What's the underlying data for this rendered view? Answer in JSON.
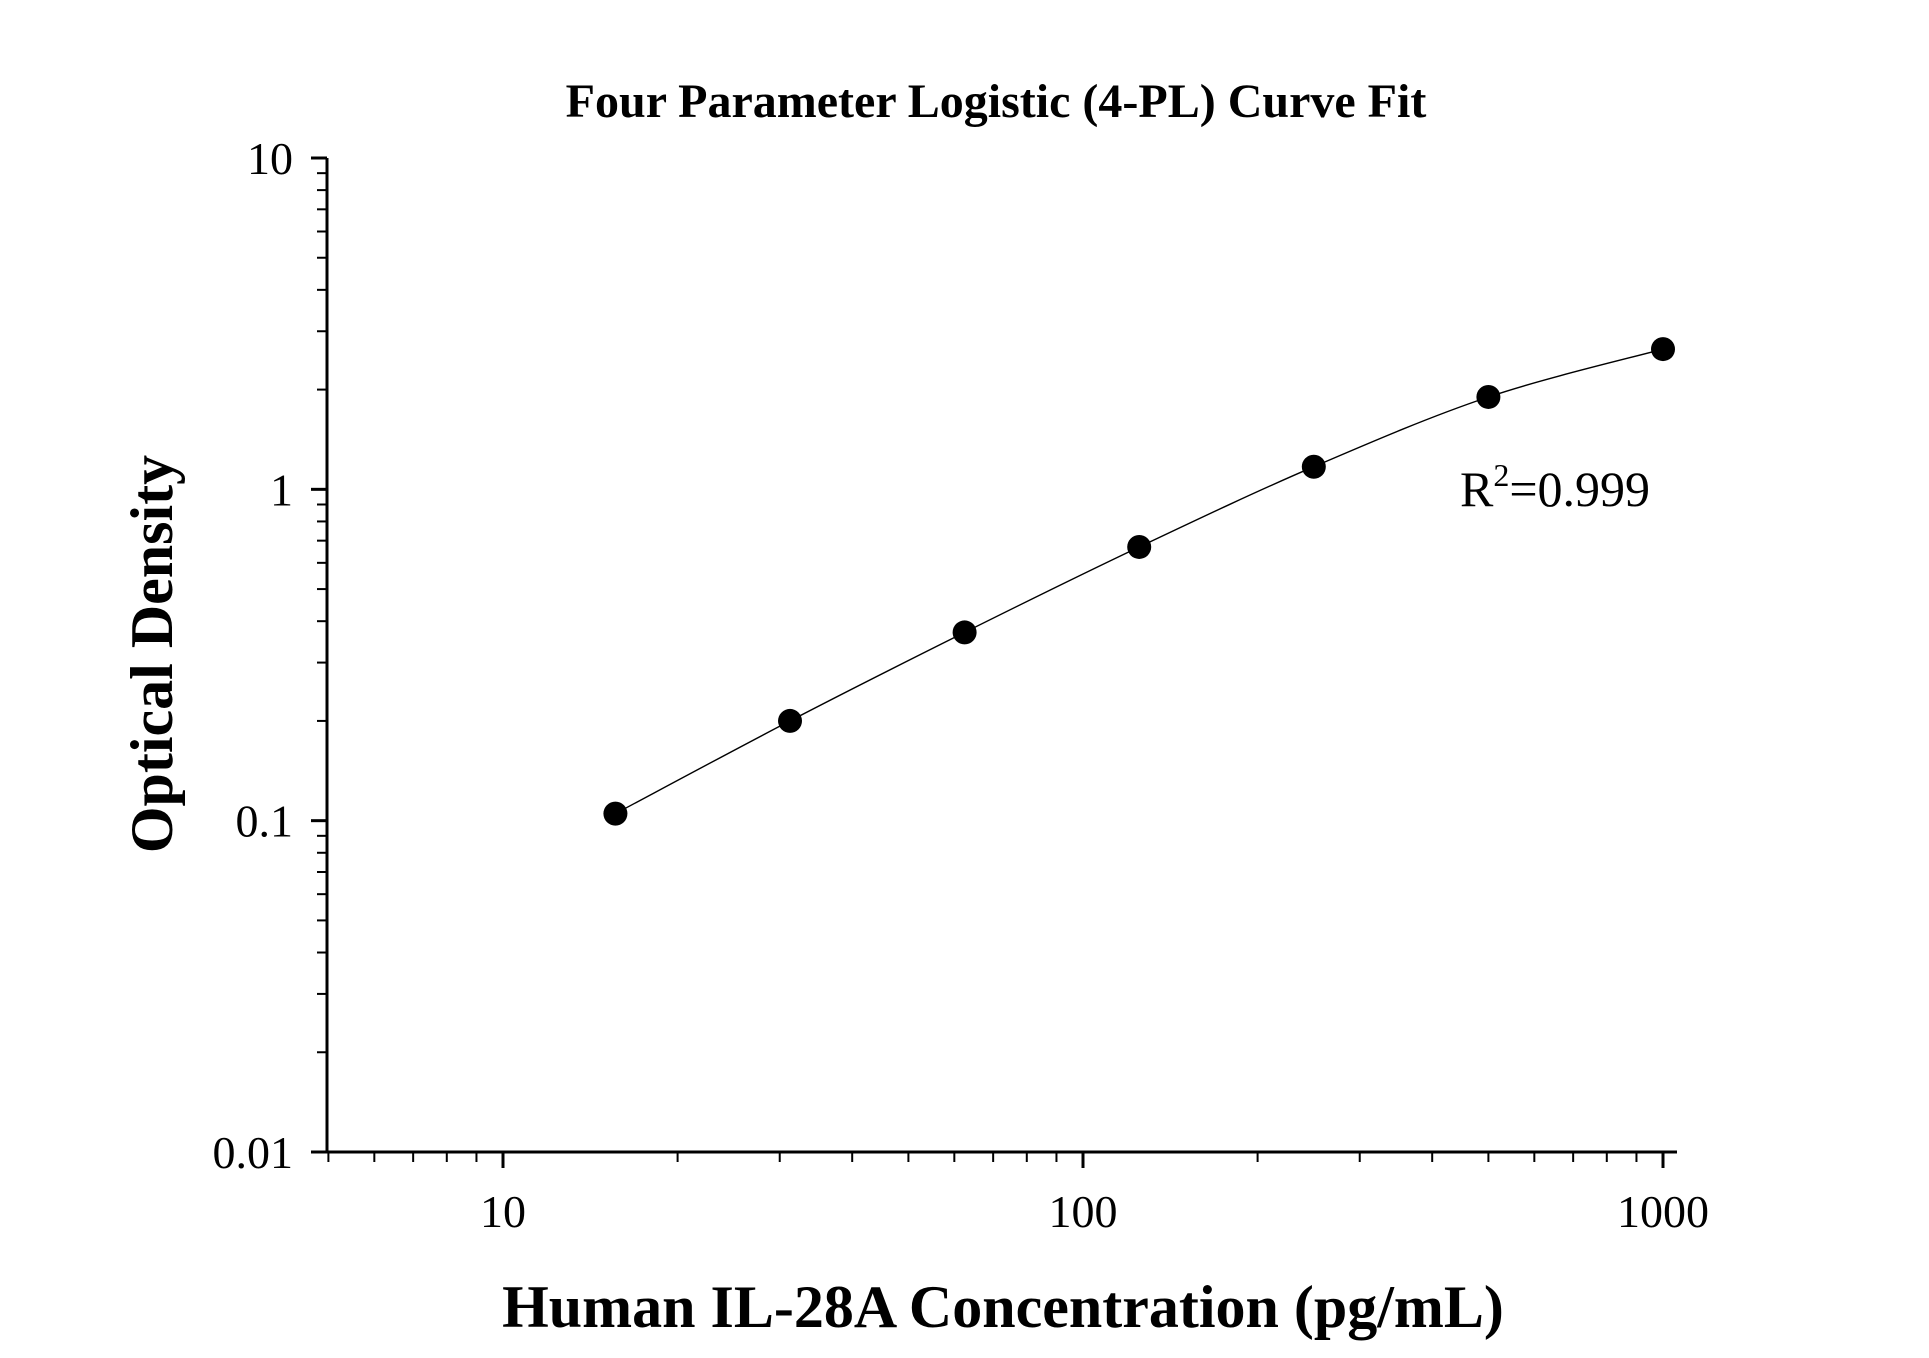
{
  "chart_data": {
    "type": "scatter",
    "title": "Four Parameter Logistic (4-PL) Curve Fit",
    "xlabel": "Human IL-28A Concentration (pg/mL)",
    "ylabel": "Optical Density",
    "xscale": "log",
    "yscale": "log",
    "xlim": [
      5,
      1000
    ],
    "ylim": [
      0.01,
      10
    ],
    "x_tick_labels": [
      "10",
      "100",
      "1000"
    ],
    "y_tick_labels": [
      "0.01",
      "0.1",
      "1",
      "10"
    ],
    "grid": false,
    "legend": "none",
    "series": [
      {
        "x": [
          15.625,
          31.25,
          62.5,
          125,
          250,
          500,
          1000
        ],
        "y": [
          0.105,
          0.2,
          0.37,
          0.67,
          1.17,
          1.9,
          2.65
        ]
      }
    ],
    "annotation": {
      "label": "R",
      "superscript": "2",
      "value": "=0.999"
    },
    "colors": {
      "points": "#000000",
      "curve": "#000000",
      "axes": "#000000",
      "background": "#ffffff"
    }
  }
}
